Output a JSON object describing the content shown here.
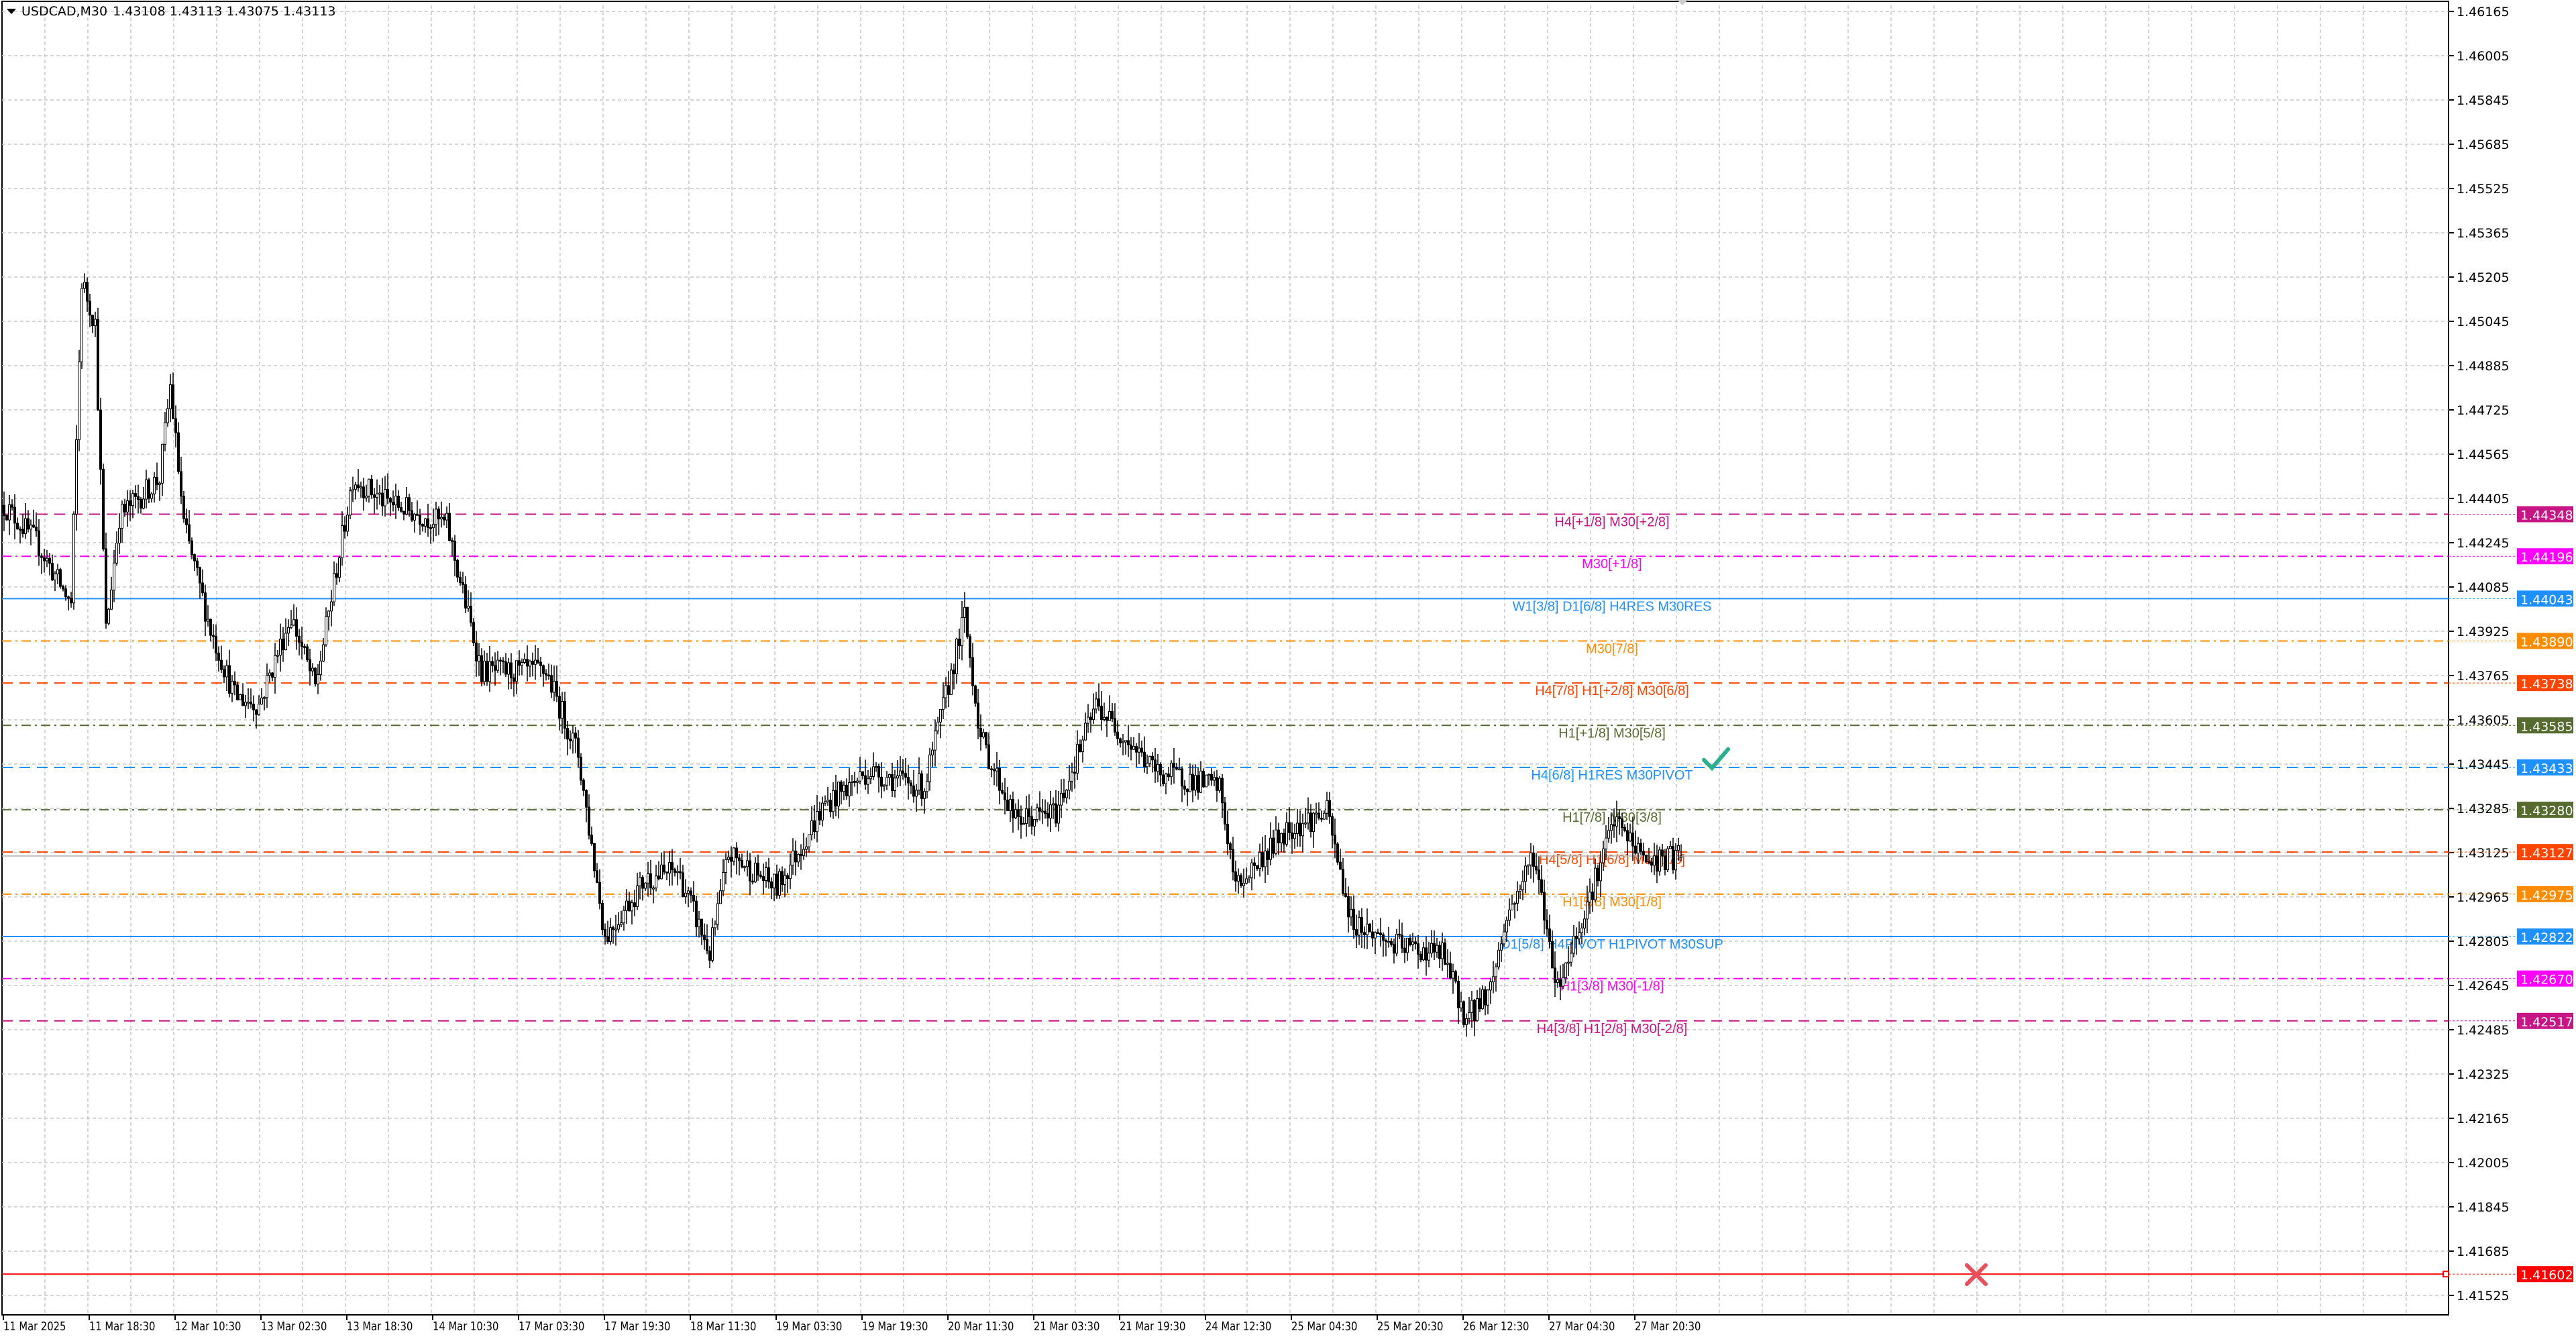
{
  "header": {
    "symbol": "USDCAD,M30",
    "ohlc": "1.43108 1.43113 1.43075 1.43113"
  },
  "chart_data": {
    "type": "candlestick",
    "symbol": "USDCAD",
    "timeframe": "M30",
    "last_bar": {
      "open": 1.43108,
      "high": 1.43113,
      "low": 1.43075,
      "close": 1.43113
    },
    "y_ticks": [
      "1.46165",
      "1.46005",
      "1.45845",
      "1.45685",
      "1.45525",
      "1.45365",
      "1.45205",
      "1.45045",
      "1.44885",
      "1.44725",
      "1.44565",
      "1.44405",
      "1.44245",
      "1.44085",
      "1.43925",
      "1.43765",
      "1.43605",
      "1.43445",
      "1.43285",
      "1.43125",
      "1.42965",
      "1.42805",
      "1.42645",
      "1.42485",
      "1.42325",
      "1.42165",
      "1.42005",
      "1.41845",
      "1.41685",
      "1.41525"
    ],
    "ylim": [
      1.415,
      1.462
    ],
    "x_ticks": [
      "11 Mar 2025",
      "11 Mar 18:30",
      "12 Mar 10:30",
      "13 Mar 02:30",
      "13 Mar 18:30",
      "14 Mar 10:30",
      "17 Mar 03:30",
      "17 Mar 19:30",
      "18 Mar 11:30",
      "19 Mar 03:30",
      "19 Mar 19:30",
      "20 Mar 11:30",
      "21 Mar 03:30",
      "21 Mar 19:30",
      "24 Mar 12:30",
      "25 Mar 04:30",
      "25 Mar 20:30",
      "26 Mar 12:30",
      "27 Mar 04:30",
      "27 Mar 20:30"
    ],
    "grid": true,
    "approx_close_path": [
      [
        0,
        1.4438
      ],
      [
        12,
        1.4425
      ],
      [
        25,
        1.4402
      ],
      [
        29,
        1.4519
      ],
      [
        34,
        1.4504
      ],
      [
        38,
        1.4393
      ],
      [
        43,
        1.4434
      ],
      [
        58,
        1.4448
      ],
      [
        62,
        1.4481
      ],
      [
        67,
        1.4431
      ],
      [
        77,
        1.4393
      ],
      [
        86,
        1.4369
      ],
      [
        95,
        1.4366
      ],
      [
        107,
        1.4398
      ],
      [
        116,
        1.4372
      ],
      [
        130,
        1.4448
      ],
      [
        141,
        1.444
      ],
      [
        165,
        1.4431
      ],
      [
        178,
        1.4378
      ],
      [
        202,
        1.4378
      ],
      [
        214,
        1.4348
      ],
      [
        224,
        1.4282
      ],
      [
        239,
        1.4303
      ],
      [
        251,
        1.4306
      ],
      [
        263,
        1.4276
      ],
      [
        270,
        1.4312
      ],
      [
        288,
        1.43
      ],
      [
        306,
        1.433
      ],
      [
        322,
        1.4342
      ],
      [
        343,
        1.4336
      ],
      [
        358,
        1.4398
      ],
      [
        364,
        1.4354
      ],
      [
        377,
        1.4324
      ],
      [
        392,
        1.4327
      ],
      [
        407,
        1.4366
      ],
      [
        429,
        1.4342
      ],
      [
        453,
        1.4336
      ],
      [
        459,
        1.43
      ],
      [
        478,
        1.4321
      ],
      [
        493,
        1.4327
      ],
      [
        502,
        1.4288
      ],
      [
        518,
        1.4279
      ],
      [
        536,
        1.4276
      ],
      [
        545,
        1.4252
      ],
      [
        554,
        1.4264
      ],
      [
        560,
        1.4289
      ],
      [
        570,
        1.4312
      ],
      [
        579,
        1.4264
      ],
      [
        591,
        1.4297
      ],
      [
        600,
        1.4324
      ],
      [
        613,
        1.4309
      ],
      [
        625,
        1.43113
      ]
    ],
    "current_price": 1.43113,
    "levels": [
      {
        "price": 1.44348,
        "price_label": "1.44348",
        "label": "H4[+1/8] M30[+2/8]",
        "color": "#C71585",
        "style": "dash"
      },
      {
        "price": 1.44196,
        "price_label": "1.44196",
        "label": "M30[+1/8]",
        "color": "#FF00FF",
        "style": "dashdot"
      },
      {
        "price": 1.44043,
        "price_label": "1.44043",
        "label": "W1[3/8] D1[6/8] H4RES M30RES",
        "color": "#1E90FF",
        "style": "solid"
      },
      {
        "price": 1.4389,
        "price_label": "1.43890",
        "label": "M30[7/8]",
        "color": "#FF8C00",
        "style": "dashdot"
      },
      {
        "price": 1.43738,
        "price_label": "1.43738",
        "label": "H4[7/8] H1[+2/8] M30[6/8]",
        "color": "#FF4500",
        "style": "dash"
      },
      {
        "price": 1.43585,
        "price_label": "1.43585",
        "label": "H1[+1/8] M30[5/8]",
        "color": "#556B2F",
        "style": "dashdot"
      },
      {
        "price": 1.43433,
        "price_label": "1.43433",
        "label": "H4[6/8] H1RES M30PIVOT",
        "color": "#1E90FF",
        "style": "dash"
      },
      {
        "price": 1.4328,
        "price_label": "1.43280",
        "label": "H1[7/8] M30[3/8]",
        "color": "#556B2F",
        "style": "dashdot"
      },
      {
        "price": 1.43127,
        "price_label": "1.43127",
        "label": "H4[5/8] H1[6/8] M30[2/8]",
        "color": "#FF4500",
        "style": "dash"
      },
      {
        "price": 1.42975,
        "price_label": "1.42975",
        "label": "H1[5/8] M30[1/8]",
        "color": "#FF8C00",
        "style": "dashdot"
      },
      {
        "price": 1.42822,
        "price_label": "1.42822",
        "label": "D1[5/8] H4PIVOT H1PIVOT M30SUP",
        "color": "#1E90FF",
        "style": "solid"
      },
      {
        "price": 1.4267,
        "price_label": "1.42670",
        "label": "H1[3/8] M30[-1/8]",
        "color": "#FF00FF",
        "style": "dashdot"
      },
      {
        "price": 1.42517,
        "price_label": "1.42517",
        "label": "H4[3/8] H1[2/8] M30[-2/8]",
        "color": "#C71585",
        "style": "dash"
      },
      {
        "price": 1.41602,
        "price_label": "1.41602",
        "label": "",
        "color": "#FF0000",
        "style": "solid"
      }
    ],
    "markers": [
      {
        "icon": "check-icon",
        "price": 1.4346,
        "bar": 638,
        "color": "#2AAF8F"
      },
      {
        "icon": "cross-icon",
        "price": 1.416,
        "bar": 735,
        "color": "#E8505B"
      }
    ]
  }
}
